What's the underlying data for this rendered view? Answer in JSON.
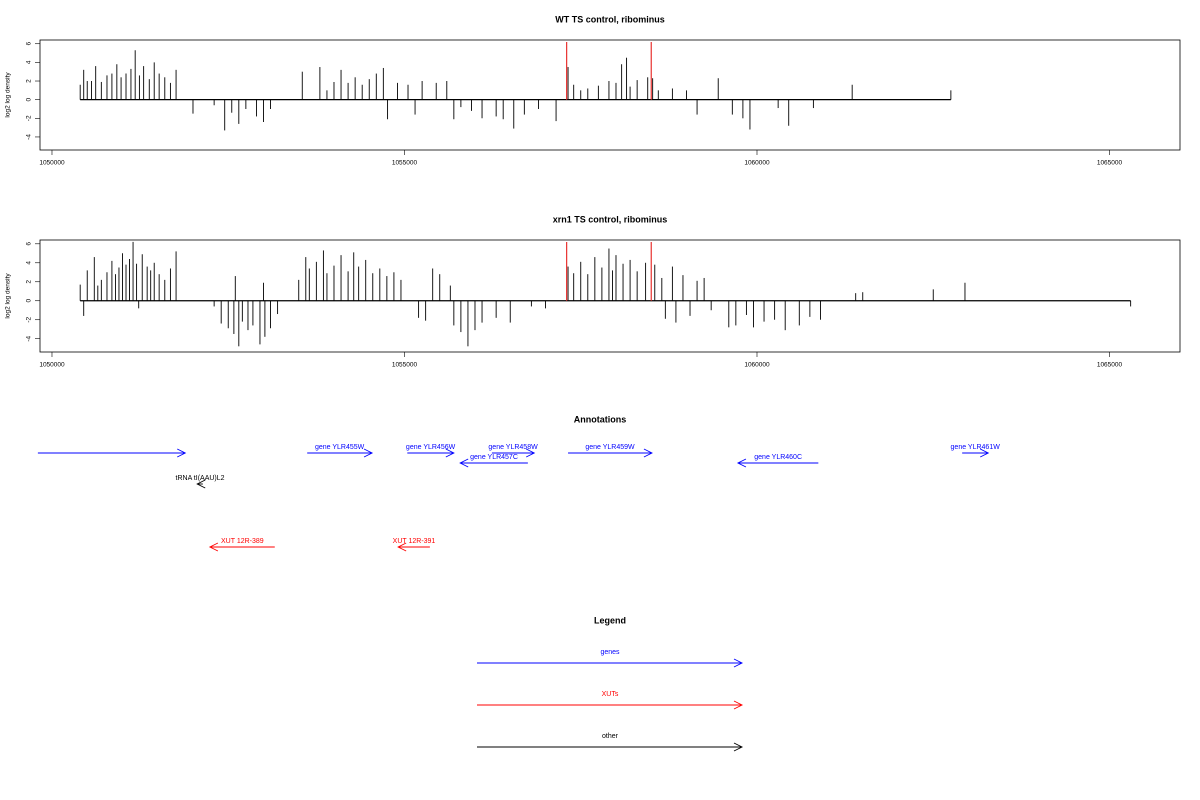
{
  "chart_data": [
    {
      "type": "bar",
      "title": "WT TS control, ribominus",
      "ylabel": "log2 log density",
      "color": "#000000",
      "xlim": [
        1049830,
        1066000
      ],
      "ylim": [
        -5.4,
        6.4
      ],
      "xticks": [
        1050000,
        1055000,
        1060000,
        1065000
      ],
      "yticks": [
        -4,
        -2,
        0,
        2,
        4,
        6
      ],
      "highlights": [
        1057300,
        1058500
      ],
      "highlight_color": "#e8312f",
      "x": [
        1050400,
        1050450,
        1050500,
        1050560,
        1050620,
        1050700,
        1050780,
        1050850,
        1050920,
        1050980,
        1051050,
        1051120,
        1051180,
        1051240,
        1051300,
        1051380,
        1051450,
        1051520,
        1051600,
        1051680,
        1051760,
        1052000,
        1052300,
        1052450,
        1052550,
        1052650,
        1052750,
        1052900,
        1053000,
        1053100,
        1053550,
        1053800,
        1053900,
        1054000,
        1054100,
        1054200,
        1054300,
        1054400,
        1054500,
        1054600,
        1054700,
        1054760,
        1054900,
        1055050,
        1055150,
        1055250,
        1055450,
        1055600,
        1055700,
        1055800,
        1055950,
        1056100,
        1056300,
        1056400,
        1056550,
        1056700,
        1056900,
        1057150,
        1057320,
        1057400,
        1057500,
        1057600,
        1057750,
        1057900,
        1058000,
        1058080,
        1058150,
        1058200,
        1058300,
        1058450,
        1058520,
        1058600,
        1058800,
        1059000,
        1059150,
        1059450,
        1059650,
        1059800,
        1059900,
        1060300,
        1060450,
        1060800,
        1061350,
        1062750
      ],
      "values": [
        1.6,
        3.2,
        2.0,
        2.0,
        3.6,
        1.9,
        2.6,
        2.8,
        3.8,
        2.4,
        2.8,
        3.3,
        5.3,
        2.6,
        3.6,
        2.2,
        4.0,
        2.8,
        2.4,
        1.8,
        3.2,
        -1.5,
        -0.6,
        -3.3,
        -1.4,
        -2.6,
        -1.0,
        -1.8,
        -2.4,
        -1.0,
        3.0,
        3.5,
        1.0,
        1.9,
        3.2,
        1.8,
        2.4,
        1.6,
        2.2,
        2.8,
        3.4,
        -2.1,
        1.8,
        1.6,
        -1.6,
        2.0,
        1.8,
        2.0,
        -2.1,
        -0.8,
        -1.2,
        -2.0,
        -1.8,
        -2.1,
        -3.1,
        -1.6,
        -1.0,
        -2.3,
        3.5,
        1.6,
        1.0,
        1.2,
        1.5,
        2.0,
        1.8,
        3.8,
        4.5,
        1.4,
        2.1,
        2.4,
        2.3,
        1.0,
        1.2,
        1.0,
        -1.6,
        2.3,
        -1.6,
        -2.0,
        -3.2,
        -0.9,
        -2.8,
        -0.9,
        1.6,
        1.0
      ]
    },
    {
      "type": "bar",
      "title": "xrn1 TS control, ribominus",
      "ylabel": "log2 log density",
      "color": "#000000",
      "xlim": [
        1049830,
        1066000
      ],
      "ylim": [
        -5.4,
        6.4
      ],
      "xticks": [
        1050000,
        1055000,
        1060000,
        1065000
      ],
      "yticks": [
        -4,
        -2,
        0,
        2,
        4,
        6
      ],
      "highlights": [
        1057300,
        1058500
      ],
      "highlight_color": "#e8312f",
      "x": [
        1050400,
        1050450,
        1050500,
        1050600,
        1050650,
        1050700,
        1050780,
        1050850,
        1050900,
        1050950,
        1051000,
        1051050,
        1051100,
        1051150,
        1051200,
        1051230,
        1051280,
        1051350,
        1051400,
        1051450,
        1051520,
        1051600,
        1051680,
        1051760,
        1052300,
        1052400,
        1052500,
        1052580,
        1052650,
        1052700,
        1052780,
        1052850,
        1052950,
        1053020,
        1053100,
        1053200,
        1052600,
        1053000,
        1053500,
        1053600,
        1053650,
        1053750,
        1053850,
        1053900,
        1054000,
        1054100,
        1054200,
        1054280,
        1054350,
        1054450,
        1054550,
        1054650,
        1054750,
        1054850,
        1054950,
        1055200,
        1055400,
        1055500,
        1055650,
        1055300,
        1055700,
        1055800,
        1055900,
        1056000,
        1056100,
        1056300,
        1056500,
        1056800,
        1057000,
        1057320,
        1057400,
        1057500,
        1057600,
        1057700,
        1057800,
        1057900,
        1057950,
        1058000,
        1058100,
        1058200,
        1058300,
        1058420,
        1058550,
        1058650,
        1058700,
        1058800,
        1058850,
        1058950,
        1059050,
        1059150,
        1059250,
        1059350,
        1059600,
        1059700,
        1059850,
        1059950,
        1060100,
        1060250,
        1060400,
        1060600,
        1060750,
        1060900,
        1061400,
        1061500,
        1062500,
        1062950,
        1065300
      ],
      "values": [
        1.7,
        -1.6,
        3.2,
        4.6,
        1.6,
        2.2,
        3.0,
        4.2,
        2.8,
        3.5,
        5.0,
        3.8,
        4.4,
        6.2,
        3.9,
        -0.8,
        4.9,
        3.6,
        3.2,
        4.0,
        2.8,
        2.2,
        3.4,
        5.2,
        -0.6,
        -2.4,
        -2.9,
        -3.5,
        -4.8,
        -2.2,
        -3.1,
        -2.6,
        -4.6,
        -3.8,
        -2.9,
        -1.4,
        2.6,
        1.9,
        2.2,
        4.6,
        3.4,
        4.1,
        5.3,
        2.9,
        3.7,
        4.8,
        3.1,
        5.1,
        3.6,
        4.3,
        2.9,
        3.4,
        2.6,
        3.0,
        2.2,
        -1.8,
        3.4,
        2.8,
        1.6,
        -2.1,
        -2.6,
        -3.3,
        -4.8,
        -3.1,
        -2.3,
        -1.8,
        -2.3,
        -0.6,
        -0.8,
        3.6,
        2.9,
        4.1,
        2.8,
        4.6,
        3.5,
        5.5,
        3.2,
        4.8,
        3.9,
        4.3,
        3.1,
        4.0,
        3.8,
        2.4,
        -1.9,
        3.6,
        -2.3,
        2.7,
        -1.6,
        2.1,
        2.4,
        -1.0,
        -2.8,
        -2.6,
        -1.5,
        -2.8,
        -2.2,
        -2.0,
        -3.1,
        -2.6,
        -1.7,
        -2.0,
        0.8,
        0.9,
        1.2,
        1.9,
        -0.6
      ]
    }
  ],
  "annotations": {
    "title": "Annotations",
    "features": [
      {
        "label": null,
        "start": 1049800,
        "end": 1051890,
        "strand": "+",
        "kind": "genes"
      },
      {
        "label": "tRNA tI(AAU)L2",
        "start": 1052060,
        "end": 1052140,
        "strand": "-",
        "kind": "other"
      },
      {
        "label": "gene YLR455W",
        "start": 1053620,
        "end": 1054540,
        "strand": "+",
        "kind": "genes"
      },
      {
        "label": "gene YLR456W",
        "start": 1055040,
        "end": 1055700,
        "strand": "+",
        "kind": "genes"
      },
      {
        "label": "gene YLR457C",
        "start": 1055790,
        "end": 1056750,
        "strand": "-",
        "kind": "genes"
      },
      {
        "label": "gene YLR458W",
        "start": 1056240,
        "end": 1056840,
        "strand": "+",
        "kind": "genes"
      },
      {
        "label": "gene YLR459W",
        "start": 1057320,
        "end": 1058510,
        "strand": "+",
        "kind": "genes"
      },
      {
        "label": "gene YLR460C",
        "start": 1059730,
        "end": 1060870,
        "strand": "-",
        "kind": "genes"
      },
      {
        "label": "gene YLR461W",
        "start": 1062910,
        "end": 1063280,
        "strand": "+",
        "kind": "genes"
      },
      {
        "label": "XUT 12R-389",
        "start": 1052240,
        "end": 1053160,
        "strand": "-",
        "kind": "XUTs"
      },
      {
        "label": "XUT 12R-391",
        "start": 1054910,
        "end": 1055360,
        "strand": "-",
        "kind": "XUTs"
      }
    ]
  },
  "legend": {
    "title": "Legend",
    "items": [
      {
        "name": "genes",
        "color": "#0000ff"
      },
      {
        "name": "XUTs",
        "color": "#ff0000"
      },
      {
        "name": "other",
        "color": "#000000"
      }
    ]
  }
}
